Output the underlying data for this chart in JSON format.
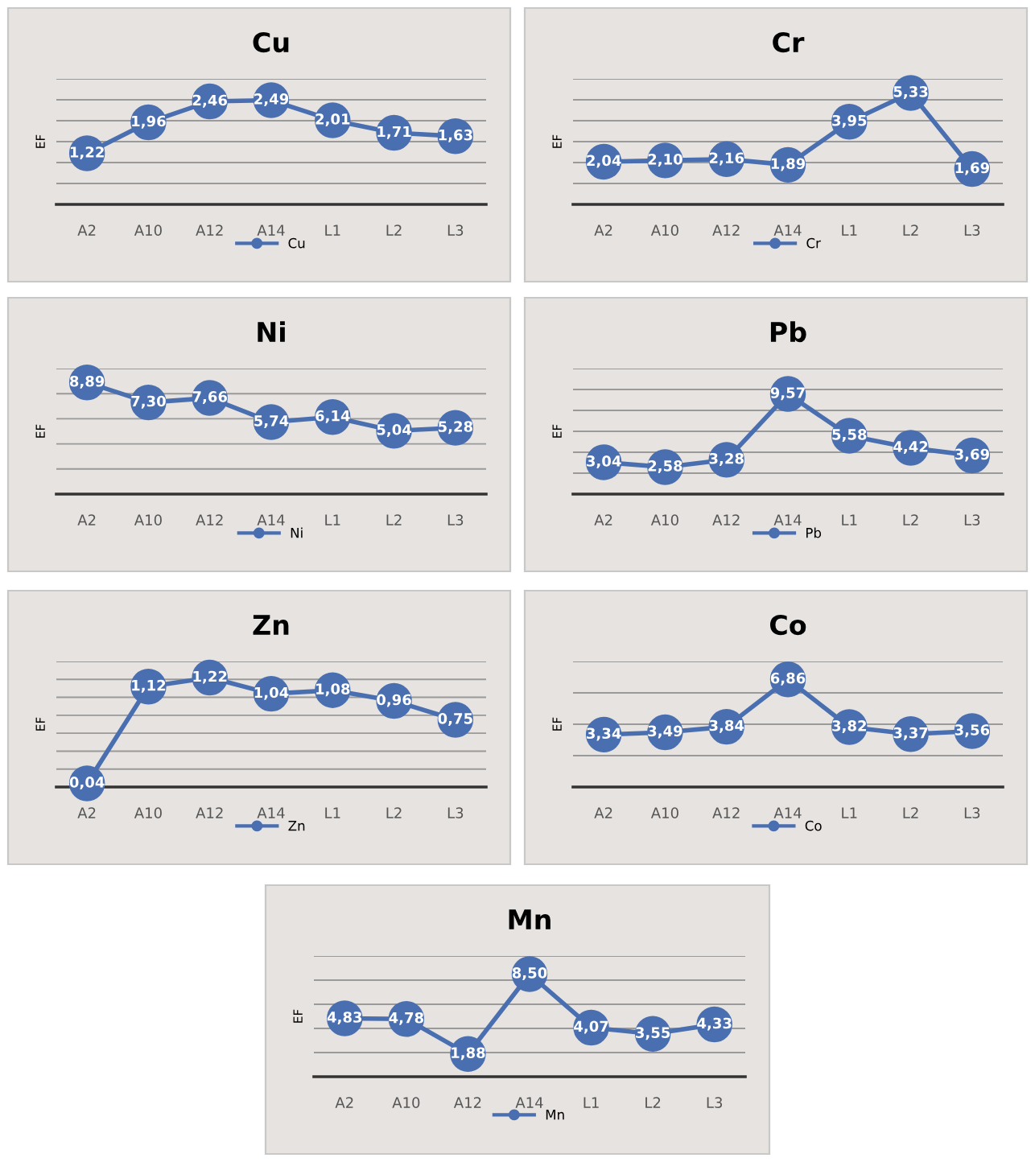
{
  "chart_data": [
    {
      "type": "line",
      "title": "Cu",
      "ylabel": "EF",
      "categories": [
        "A2",
        "A10",
        "A12",
        "A14",
        "L1",
        "L2",
        "L3"
      ],
      "ylim": [
        0,
        3
      ],
      "yticks": [
        {
          "value": 0,
          "label": null
        },
        {
          "value": 0.5,
          "label": null
        },
        {
          "value": 1,
          "label": null
        },
        {
          "value": 1.5,
          "label": null
        },
        {
          "value": 2,
          "label": null
        },
        {
          "value": 2.5,
          "label": null
        },
        {
          "value": 3,
          "label": null
        }
      ],
      "tick_labels": "x",
      "grid": "y",
      "legend": "bottom",
      "marker": "circle",
      "line_style": "solid",
      "series": [
        {
          "name": "Cu",
          "color": "#4a6fb0",
          "values": [
            1.22,
            1.96,
            2.46,
            2.49,
            2.01,
            1.71,
            1.63
          ],
          "value_labels": [
            "1,22",
            "1,96",
            "2,46",
            "2,49",
            "2,01",
            "1,71",
            "1,63"
          ]
        }
      ]
    },
    {
      "type": "line",
      "title": "Cr",
      "ylabel": "EF",
      "categories": [
        "A2",
        "A10",
        "A12",
        "A14",
        "L1",
        "L2",
        "L3"
      ],
      "ylim": [
        0,
        6
      ],
      "yticks": [
        {
          "value": 0,
          "label": null
        },
        {
          "value": 1,
          "label": null
        },
        {
          "value": 2,
          "label": null
        },
        {
          "value": 3,
          "label": null
        },
        {
          "value": 4,
          "label": null
        },
        {
          "value": 5,
          "label": null
        },
        {
          "value": 6,
          "label": null
        }
      ],
      "tick_labels": "x",
      "grid": "y",
      "legend": "bottom",
      "marker": "circle",
      "line_style": "solid",
      "series": [
        {
          "name": "Cr",
          "color": "#4a6fb0",
          "values": [
            2.04,
            2.1,
            2.16,
            1.89,
            3.95,
            5.33,
            1.69
          ],
          "value_labels": [
            "2,04",
            "2,10",
            "2,16",
            "1,89",
            "3,95",
            "5,33",
            "1,69"
          ]
        }
      ]
    },
    {
      "type": "line",
      "title": "Ni",
      "ylabel": "EF",
      "categories": [
        "A2",
        "A10",
        "A12",
        "A14",
        "L1",
        "L2",
        "L3"
      ],
      "ylim": [
        0,
        10
      ],
      "yticks": [
        {
          "value": 0,
          "label": null
        },
        {
          "value": 2,
          "label": null
        },
        {
          "value": 4,
          "label": null
        },
        {
          "value": 6,
          "label": null
        },
        {
          "value": 8,
          "label": null
        },
        {
          "value": 10,
          "label": null
        }
      ],
      "tick_labels": "x",
      "grid": "y",
      "legend": "bottom",
      "marker": "circle",
      "line_style": "solid",
      "series": [
        {
          "name": "Ni",
          "color": "#4a6fb0",
          "values": [
            8.89,
            7.3,
            7.66,
            5.74,
            6.14,
            5.04,
            5.28
          ],
          "value_labels": [
            "8,89",
            "7,30",
            "7,66",
            "5,74",
            "6,14",
            "5,04",
            "5,28"
          ]
        }
      ]
    },
    {
      "type": "line",
      "title": "Pb",
      "ylabel": "EF",
      "categories": [
        "A2",
        "A10",
        "A12",
        "A14",
        "L1",
        "L2",
        "L3"
      ],
      "ylim": [
        0,
        12
      ],
      "yticks": [
        {
          "value": 0,
          "label": null
        },
        {
          "value": 2,
          "label": null
        },
        {
          "value": 4,
          "label": null
        },
        {
          "value": 6,
          "label": null
        },
        {
          "value": 8,
          "label": null
        },
        {
          "value": 10,
          "label": null
        },
        {
          "value": 12,
          "label": null
        }
      ],
      "tick_labels": "x",
      "grid": "y",
      "legend": "bottom",
      "marker": "circle",
      "line_style": "solid",
      "series": [
        {
          "name": "Pb",
          "color": "#4a6fb0",
          "values": [
            3.04,
            2.58,
            3.28,
            9.57,
            5.58,
            4.42,
            3.69
          ],
          "value_labels": [
            "3,04",
            "2,58",
            "3,28",
            "9,57",
            "5,58",
            "4,42",
            "3,69"
          ]
        }
      ]
    },
    {
      "type": "line",
      "title": "Zn",
      "ylabel": "EF",
      "categories": [
        "A2",
        "A10",
        "A12",
        "A14",
        "L1",
        "L2",
        "L3"
      ],
      "ylim": [
        0,
        1.4
      ],
      "yticks": [
        {
          "value": 0,
          "label": null
        },
        {
          "value": 0.2,
          "label": null
        },
        {
          "value": 0.4,
          "label": null
        },
        {
          "value": 0.6,
          "label": null
        },
        {
          "value": 0.8,
          "label": null
        },
        {
          "value": 1,
          "label": null
        },
        {
          "value": 1.2,
          "label": null
        },
        {
          "value": 1.4,
          "label": null
        }
      ],
      "tick_labels": "x",
      "grid": "y",
      "legend": "bottom",
      "marker": "circle",
      "line_style": "solid",
      "series": [
        {
          "name": "Zn",
          "color": "#4a6fb0",
          "values": [
            0.04,
            1.12,
            1.22,
            1.04,
            1.08,
            0.96,
            0.75
          ],
          "value_labels": [
            "0,04",
            "1,12",
            "1,22",
            "1,04",
            "1,08",
            "0,96",
            "0,75"
          ]
        }
      ]
    },
    {
      "type": "line",
      "title": "Co",
      "ylabel": "EF",
      "categories": [
        "A2",
        "A10",
        "A12",
        "A14",
        "L1",
        "L2",
        "L3"
      ],
      "ylim": [
        0,
        8
      ],
      "yticks": [
        {
          "value": 0,
          "label": null
        },
        {
          "value": 2,
          "label": null
        },
        {
          "value": 4,
          "label": null
        },
        {
          "value": 6,
          "label": null
        },
        {
          "value": 8,
          "label": null
        }
      ],
      "tick_labels": "x",
      "grid": "y",
      "legend": "bottom",
      "marker": "circle",
      "line_style": "solid",
      "series": [
        {
          "name": "Co",
          "color": "#4a6fb0",
          "values": [
            3.34,
            3.49,
            3.84,
            6.86,
            3.82,
            3.37,
            3.56
          ],
          "value_labels": [
            "3,34",
            "3,49",
            "3,84",
            "6,86",
            "3,82",
            "3,37",
            "3,56"
          ]
        }
      ]
    },
    {
      "type": "line",
      "title": "Mn",
      "ylabel": "EF",
      "categories": [
        "A2",
        "A10",
        "A12",
        "A14",
        "L1",
        "L2",
        "L3"
      ],
      "ylim": [
        0,
        10
      ],
      "yticks": [
        {
          "value": 0,
          "label": null
        },
        {
          "value": 2,
          "label": null
        },
        {
          "value": 4,
          "label": null
        },
        {
          "value": 6,
          "label": null
        },
        {
          "value": 8,
          "label": null
        },
        {
          "value": 10,
          "label": null
        }
      ],
      "tick_labels": "x",
      "grid": "y",
      "legend": "bottom",
      "marker": "circle",
      "line_style": "solid",
      "series": [
        {
          "name": "Mn",
          "color": "#4a6fb0",
          "values": [
            4.83,
            4.78,
            1.88,
            8.5,
            4.07,
            3.55,
            4.33
          ],
          "value_labels": [
            "4,83",
            "4,78",
            "1,88",
            "8,50",
            "4,07",
            "3,55",
            "4,33"
          ]
        }
      ]
    }
  ]
}
